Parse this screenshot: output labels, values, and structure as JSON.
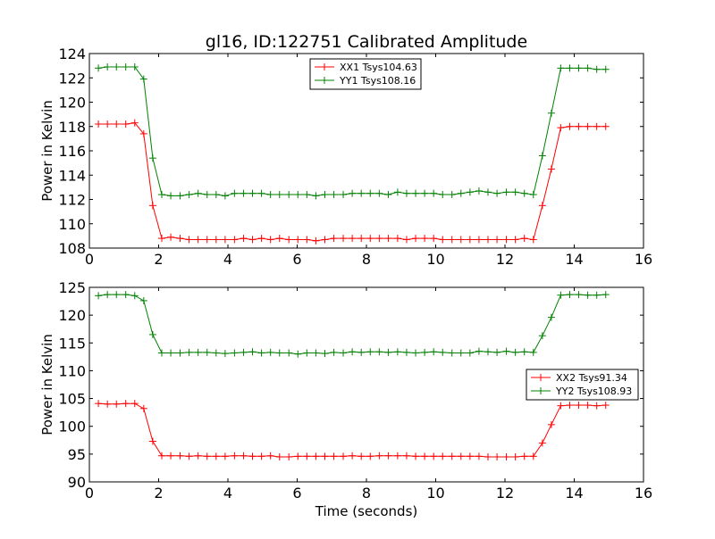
{
  "chart_data": {
    "title": "gl16, ID:122751 Calibrated Amplitude",
    "xlabel": "Time (seconds)",
    "colors": {
      "red": "#ff0000",
      "green": "#008000"
    },
    "panels": [
      {
        "type": "line",
        "ylabel": "Power in Kelvin",
        "xlim": [
          0,
          16
        ],
        "ylim": [
          108,
          124
        ],
        "xticks": [
          "0",
          "2",
          "4",
          "6",
          "8",
          "10",
          "12",
          "14",
          "16"
        ],
        "xtick_values": [
          0,
          2,
          4,
          6,
          8,
          10,
          12,
          14,
          16
        ],
        "yticks": [
          "108",
          "110",
          "112",
          "114",
          "116",
          "118",
          "120",
          "122",
          "124"
        ],
        "ytick_values": [
          108,
          110,
          112,
          114,
          116,
          118,
          120,
          122,
          124
        ],
        "legend_position": "upper-center",
        "series": [
          {
            "name": "XX1 Tsys104.63",
            "color": "#ff0000",
            "x": [
              0.26,
              0.52,
              0.78,
              1.05,
              1.31,
              1.57,
              1.83,
              2.09,
              2.35,
              2.62,
              2.88,
              3.14,
              3.4,
              3.66,
              3.92,
              4.19,
              4.45,
              4.71,
              4.97,
              5.23,
              5.49,
              5.76,
              6.02,
              6.28,
              6.54,
              6.8,
              7.06,
              7.33,
              7.59,
              7.85,
              8.11,
              8.37,
              8.63,
              8.9,
              9.16,
              9.42,
              9.68,
              9.94,
              10.2,
              10.47,
              10.73,
              10.99,
              11.25,
              11.51,
              11.77,
              12.04,
              12.3,
              12.56,
              12.82,
              13.08,
              13.34,
              13.61,
              13.87,
              14.13,
              14.39,
              14.65,
              14.91
            ],
            "y": [
              118.2,
              118.2,
              118.2,
              118.2,
              118.3,
              117.4,
              111.5,
              108.8,
              108.9,
              108.8,
              108.7,
              108.7,
              108.7,
              108.7,
              108.7,
              108.7,
              108.8,
              108.7,
              108.8,
              108.7,
              108.8,
              108.7,
              108.7,
              108.7,
              108.6,
              108.7,
              108.8,
              108.8,
              108.8,
              108.8,
              108.8,
              108.8,
              108.8,
              108.8,
              108.7,
              108.8,
              108.8,
              108.8,
              108.7,
              108.7,
              108.7,
              108.7,
              108.7,
              108.7,
              108.7,
              108.7,
              108.7,
              108.8,
              108.7,
              111.5,
              114.5,
              117.9,
              118.0,
              118.0,
              118.0,
              118.0,
              118.0
            ]
          },
          {
            "name": "YY1 Tsys108.16",
            "color": "#008000",
            "x": [
              0.26,
              0.52,
              0.78,
              1.05,
              1.31,
              1.57,
              1.83,
              2.09,
              2.35,
              2.62,
              2.88,
              3.14,
              3.4,
              3.66,
              3.92,
              4.19,
              4.45,
              4.71,
              4.97,
              5.23,
              5.49,
              5.76,
              6.02,
              6.28,
              6.54,
              6.8,
              7.06,
              7.33,
              7.59,
              7.85,
              8.11,
              8.37,
              8.63,
              8.9,
              9.16,
              9.42,
              9.68,
              9.94,
              10.2,
              10.47,
              10.73,
              10.99,
              11.25,
              11.51,
              11.77,
              12.04,
              12.3,
              12.56,
              12.82,
              13.08,
              13.34,
              13.61,
              13.87,
              14.13,
              14.39,
              14.65,
              14.91
            ],
            "y": [
              122.8,
              122.9,
              122.9,
              122.9,
              122.9,
              121.9,
              115.4,
              112.4,
              112.3,
              112.3,
              112.4,
              112.5,
              112.4,
              112.4,
              112.3,
              112.5,
              112.5,
              112.5,
              112.5,
              112.4,
              112.4,
              112.4,
              112.4,
              112.4,
              112.3,
              112.4,
              112.4,
              112.4,
              112.5,
              112.5,
              112.5,
              112.5,
              112.4,
              112.6,
              112.5,
              112.5,
              112.5,
              112.5,
              112.4,
              112.4,
              112.5,
              112.6,
              112.7,
              112.6,
              112.5,
              112.6,
              112.6,
              112.5,
              112.4,
              115.6,
              119.1,
              122.8,
              122.8,
              122.8,
              122.8,
              122.7,
              122.7
            ]
          }
        ]
      },
      {
        "type": "line",
        "ylabel": "Power in Kelvin",
        "xlabel": "Time (seconds)",
        "xlim": [
          0,
          16
        ],
        "ylim": [
          90,
          125
        ],
        "xticks": [
          "0",
          "2",
          "4",
          "6",
          "8",
          "10",
          "12",
          "14",
          "16"
        ],
        "xtick_values": [
          0,
          2,
          4,
          6,
          8,
          10,
          12,
          14,
          16
        ],
        "yticks": [
          "90",
          "95",
          "100",
          "105",
          "110",
          "115",
          "120",
          "125"
        ],
        "ytick_values": [
          90,
          95,
          100,
          105,
          110,
          115,
          120,
          125
        ],
        "legend_position": "center-right",
        "series": [
          {
            "name": "XX2 Tsys91.34",
            "color": "#ff0000",
            "x": [
              0.26,
              0.52,
              0.78,
              1.05,
              1.31,
              1.57,
              1.83,
              2.09,
              2.35,
              2.62,
              2.88,
              3.14,
              3.4,
              3.66,
              3.92,
              4.19,
              4.45,
              4.71,
              4.97,
              5.23,
              5.49,
              5.76,
              6.02,
              6.28,
              6.54,
              6.8,
              7.06,
              7.33,
              7.59,
              7.85,
              8.11,
              8.37,
              8.63,
              8.9,
              9.16,
              9.42,
              9.68,
              9.94,
              10.2,
              10.47,
              10.73,
              10.99,
              11.25,
              11.51,
              11.77,
              12.04,
              12.3,
              12.56,
              12.82,
              13.08,
              13.34,
              13.61,
              13.87,
              14.13,
              14.39,
              14.65,
              14.91
            ],
            "y": [
              104.1,
              104.0,
              104.0,
              104.1,
              104.1,
              103.2,
              97.3,
              94.7,
              94.7,
              94.7,
              94.6,
              94.7,
              94.6,
              94.6,
              94.6,
              94.7,
              94.7,
              94.6,
              94.6,
              94.7,
              94.5,
              94.5,
              94.6,
              94.6,
              94.6,
              94.6,
              94.6,
              94.6,
              94.7,
              94.6,
              94.6,
              94.7,
              94.7,
              94.7,
              94.7,
              94.6,
              94.6,
              94.6,
              94.6,
              94.6,
              94.6,
              94.6,
              94.6,
              94.5,
              94.5,
              94.5,
              94.5,
              94.6,
              94.6,
              97.0,
              100.3,
              103.7,
              103.8,
              103.8,
              103.8,
              103.7,
              103.8
            ]
          },
          {
            "name": "YY2 Tsys108.93",
            "color": "#008000",
            "x": [
              0.26,
              0.52,
              0.78,
              1.05,
              1.31,
              1.57,
              1.83,
              2.09,
              2.35,
              2.62,
              2.88,
              3.14,
              3.4,
              3.66,
              3.92,
              4.19,
              4.45,
              4.71,
              4.97,
              5.23,
              5.49,
              5.76,
              6.02,
              6.28,
              6.54,
              6.8,
              7.06,
              7.33,
              7.59,
              7.85,
              8.11,
              8.37,
              8.63,
              8.9,
              9.16,
              9.42,
              9.68,
              9.94,
              10.2,
              10.47,
              10.73,
              10.99,
              11.25,
              11.51,
              11.77,
              12.04,
              12.3,
              12.56,
              12.82,
              13.08,
              13.34,
              13.61,
              13.87,
              14.13,
              14.39,
              14.65,
              14.91
            ],
            "y": [
              123.5,
              123.7,
              123.7,
              123.7,
              123.5,
              122.6,
              116.5,
              113.2,
              113.2,
              113.2,
              113.3,
              113.3,
              113.3,
              113.2,
              113.1,
              113.2,
              113.3,
              113.4,
              113.2,
              113.3,
              113.2,
              113.2,
              113.0,
              113.2,
              113.2,
              113.1,
              113.3,
              113.2,
              113.4,
              113.3,
              113.4,
              113.4,
              113.3,
              113.4,
              113.3,
              113.2,
              113.3,
              113.4,
              113.3,
              113.2,
              113.2,
              113.2,
              113.5,
              113.4,
              113.3,
              113.5,
              113.3,
              113.4,
              113.3,
              116.3,
              119.6,
              123.6,
              123.7,
              123.7,
              123.6,
              123.6,
              123.7
            ]
          }
        ]
      }
    ]
  }
}
